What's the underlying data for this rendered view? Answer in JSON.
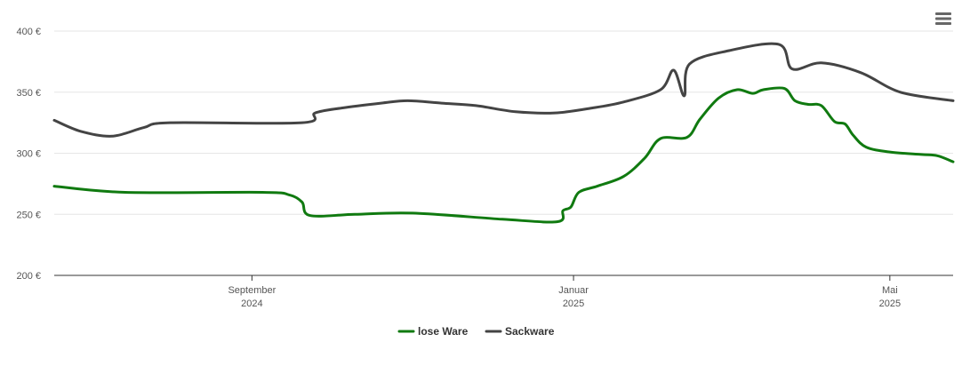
{
  "chart_data": {
    "type": "line",
    "y_ticks": [
      "200 €",
      "250 €",
      "300 €",
      "350 €",
      "400 €"
    ],
    "y_tick_values": [
      200,
      250,
      300,
      350,
      400
    ],
    "ylim": [
      200,
      400
    ],
    "x_range": [
      "2024-06-18",
      "2025-05-25"
    ],
    "x_ticks": [
      {
        "date": "2024-09-01",
        "month": "September",
        "year": "2024"
      },
      {
        "date": "2025-01-01",
        "month": "Januar",
        "year": "2025"
      },
      {
        "date": "2025-05-01",
        "month": "Mai",
        "year": "2025"
      }
    ],
    "grid": true,
    "legend_position": "bottom-center",
    "colors": {
      "lose_ware": "#107a10",
      "sackware": "#444444"
    },
    "series": [
      {
        "name": "lose Ware",
        "color": "#107a10",
        "points": [
          [
            "2024-06-18",
            273
          ],
          [
            "2024-07-15",
            268
          ],
          [
            "2024-09-05",
            268
          ],
          [
            "2024-09-15",
            266
          ],
          [
            "2024-09-20",
            260
          ],
          [
            "2024-09-23",
            249
          ],
          [
            "2024-10-10",
            250
          ],
          [
            "2024-11-01",
            251
          ],
          [
            "2024-12-05",
            246
          ],
          [
            "2024-12-26",
            244
          ],
          [
            "2024-12-28",
            253
          ],
          [
            "2024-12-31",
            256
          ],
          [
            "2025-01-03",
            268
          ],
          [
            "2025-01-10",
            273
          ],
          [
            "2025-01-20",
            281
          ],
          [
            "2025-01-28",
            296
          ],
          [
            "2025-02-03",
            312
          ],
          [
            "2025-02-13",
            313
          ],
          [
            "2025-02-18",
            328
          ],
          [
            "2025-02-25",
            345
          ],
          [
            "2025-03-04",
            352
          ],
          [
            "2025-03-10",
            349
          ],
          [
            "2025-03-14",
            352
          ],
          [
            "2025-03-22",
            353
          ],
          [
            "2025-03-26",
            343
          ],
          [
            "2025-03-31",
            340
          ],
          [
            "2025-04-05",
            339
          ],
          [
            "2025-04-10",
            326
          ],
          [
            "2025-04-14",
            324
          ],
          [
            "2025-04-17",
            315
          ],
          [
            "2025-04-22",
            305
          ],
          [
            "2025-05-01",
            301
          ],
          [
            "2025-05-13",
            299
          ],
          [
            "2025-05-19",
            298
          ],
          [
            "2025-05-25",
            293
          ]
        ]
      },
      {
        "name": "Sackware",
        "color": "#444444",
        "points": [
          [
            "2024-06-18",
            327
          ],
          [
            "2024-06-28",
            318
          ],
          [
            "2024-07-10",
            314
          ],
          [
            "2024-07-22",
            321
          ],
          [
            "2024-08-01",
            325
          ],
          [
            "2024-09-20",
            325
          ],
          [
            "2024-09-25",
            333
          ],
          [
            "2024-10-05",
            337
          ],
          [
            "2024-10-20",
            341
          ],
          [
            "2024-10-30",
            343
          ],
          [
            "2024-11-12",
            341
          ],
          [
            "2024-11-25",
            339
          ],
          [
            "2024-12-10",
            334
          ],
          [
            "2024-12-25",
            333
          ],
          [
            "2025-01-08",
            337
          ],
          [
            "2025-01-20",
            342
          ],
          [
            "2025-02-03",
            352
          ],
          [
            "2025-02-08",
            368
          ],
          [
            "2025-02-12",
            347
          ],
          [
            "2025-02-14",
            373
          ],
          [
            "2025-03-01",
            384
          ],
          [
            "2025-03-20",
            389
          ],
          [
            "2025-03-25",
            369
          ],
          [
            "2025-04-05",
            374
          ],
          [
            "2025-04-20",
            366
          ],
          [
            "2025-05-05",
            350
          ],
          [
            "2025-05-25",
            343
          ]
        ]
      }
    ]
  }
}
